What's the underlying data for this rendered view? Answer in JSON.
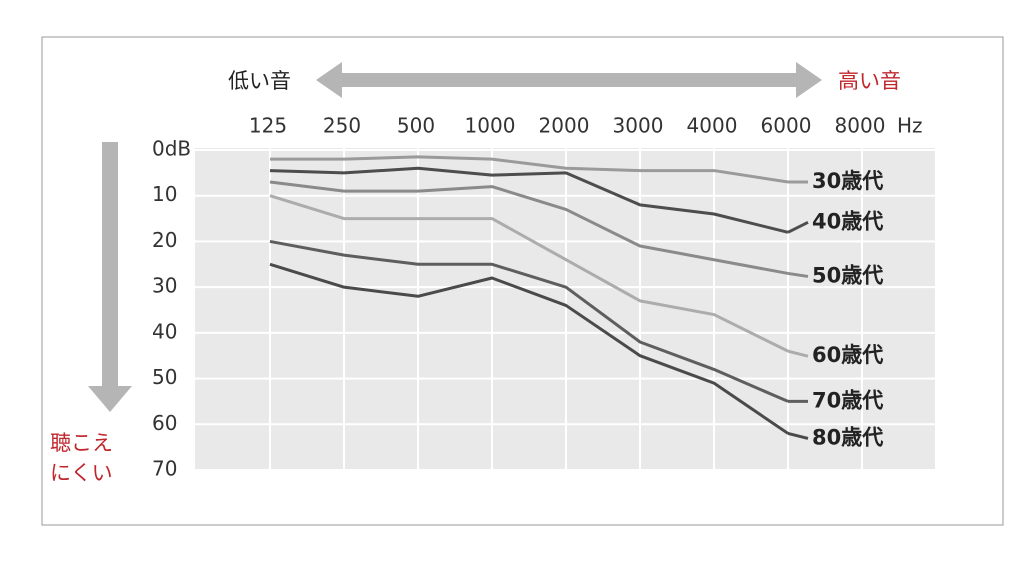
{
  "chart_data": {
    "type": "line",
    "left_label": "低い音",
    "right_label": "高い音",
    "corner_label": [
      "聴こえ",
      "にくい"
    ],
    "categories": [
      "125",
      "250",
      "500",
      "1000",
      "2000",
      "3000",
      "4000",
      "6000",
      "8000"
    ],
    "x_label": "Hz",
    "ylim": [
      0,
      70
    ],
    "reversed": true,
    "yticks": [
      {
        "value": 0,
        "label": "0dB"
      },
      10,
      20,
      30,
      40,
      50,
      60,
      70
    ],
    "grid": true,
    "series": [
      {
        "name": "30歳代",
        "color": "#9a9a9a",
        "values": [
          2,
          2,
          1.5,
          2,
          4,
          4.5,
          4.5,
          7,
          null
        ]
      },
      {
        "name": "40歳代",
        "color": "#4d4d4d",
        "values": [
          4.5,
          5,
          4,
          5.5,
          5,
          12,
          14,
          18,
          null
        ]
      },
      {
        "name": "50歳代",
        "color": "#8a8a8a",
        "values": [
          7,
          9,
          9,
          8,
          13,
          21,
          24,
          27,
          null
        ]
      },
      {
        "name": "60歳代",
        "color": "#acacac",
        "values": [
          10,
          15,
          15,
          15,
          24,
          33,
          36,
          44,
          null
        ]
      },
      {
        "name": "70歳代",
        "color": "#5e5e5e",
        "values": [
          20,
          23,
          25,
          25,
          30,
          42,
          48,
          55,
          null
        ]
      },
      {
        "name": "80歳代",
        "color": "#4a4a4a",
        "values": [
          25,
          30,
          32,
          28,
          34,
          45,
          51,
          62,
          null
        ]
      }
    ]
  }
}
